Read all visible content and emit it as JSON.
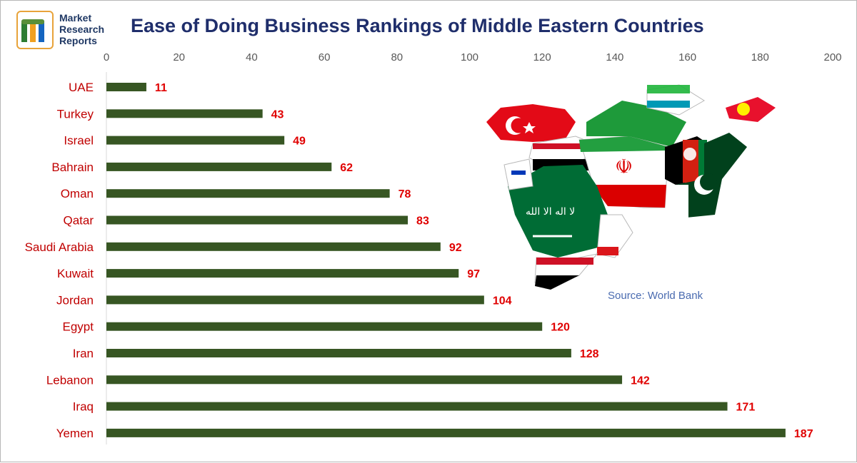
{
  "logo": {
    "line1": "Market",
    "line2": "Research",
    "line3": "Reports",
    "registered": "®",
    "mark_letter": "m"
  },
  "title": "Ease of Doing Business Rankings of Middle Eastern Countries",
  "source": "Source: World Bank",
  "map_image": {
    "description_icon": "middle-east-flag-map-icon",
    "colors": [
      "#e30a17",
      "#006c35",
      "#ffffff",
      "#000000",
      "#239f40",
      "#da0000"
    ]
  },
  "colors": {
    "bar": "#375623",
    "category_label": "#c00000",
    "value_label": "#e00000",
    "axis_tick": "#595959",
    "title": "#1f2e6b",
    "source": "#4a6bb0",
    "logo_border": "#e8a33a"
  },
  "chart_data": {
    "type": "bar",
    "orientation": "horizontal",
    "title": "Ease of Doing Business Rankings of Middle Eastern Countries",
    "xlabel": "",
    "ylabel": "",
    "xlim": [
      0,
      200
    ],
    "x_ticks": [
      0,
      20,
      40,
      60,
      80,
      100,
      120,
      140,
      160,
      180,
      200
    ],
    "x_axis_position": "top",
    "grid": false,
    "categories": [
      "UAE",
      "Turkey",
      "Israel",
      "Bahrain",
      "Oman",
      "Qatar",
      "Saudi Arabia",
      "Kuwait",
      "Jordan",
      "Egypt",
      "Iran",
      "Lebanon",
      "Iraq",
      "Yemen"
    ],
    "values": [
      11,
      43,
      49,
      62,
      78,
      83,
      92,
      97,
      104,
      120,
      128,
      142,
      171,
      187
    ]
  }
}
